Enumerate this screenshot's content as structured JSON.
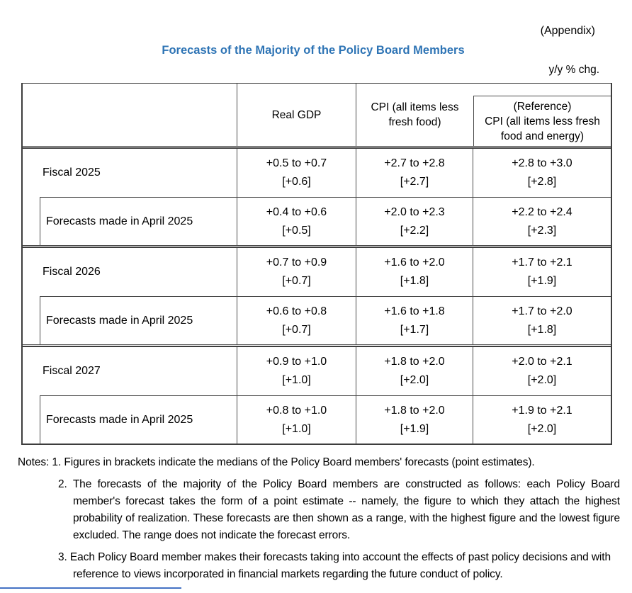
{
  "page": {
    "appendix_label": "(Appendix)",
    "title": "Forecasts of the Majority of the Policy Board Members",
    "unit_label": "y/y % chg."
  },
  "colors": {
    "title_blue": "#2E74B5",
    "footer_rule_blue": "#4472C4",
    "table_border_gray": "#3d3d3d"
  },
  "table": {
    "column_headers": {
      "real_gdp": "Real GDP",
      "cpi": "CPI (all items less fresh food)",
      "reference_line1": "(Reference)",
      "reference_line2": "CPI (all items less fresh food and energy)"
    },
    "groups": [
      {
        "fiscal_row": {
          "label": "Fiscal 2025",
          "real_gdp": {
            "range": "+0.5 to +0.7",
            "median": "[+0.6]"
          },
          "cpi": {
            "range": "+2.7 to +2.8",
            "median": "[+2.7]"
          },
          "reference": {
            "range": "+2.8 to +3.0",
            "median": "[+2.8]"
          }
        },
        "april_row": {
          "label": "Forecasts made in April 2025",
          "real_gdp": {
            "range": "+0.4 to +0.6",
            "median": "[+0.5]"
          },
          "cpi": {
            "range": "+2.0 to +2.3",
            "median": "[+2.2]"
          },
          "reference": {
            "range": "+2.2 to +2.4",
            "median": "[+2.3]"
          }
        }
      },
      {
        "fiscal_row": {
          "label": "Fiscal 2026",
          "real_gdp": {
            "range": "+0.7 to +0.9",
            "median": "[+0.7]"
          },
          "cpi": {
            "range": "+1.6 to +2.0",
            "median": "[+1.8]"
          },
          "reference": {
            "range": "+1.7 to +2.1",
            "median": "[+1.9]"
          }
        },
        "april_row": {
          "label": "Forecasts made in April 2025",
          "real_gdp": {
            "range": "+0.6 to +0.8",
            "median": "[+0.7]"
          },
          "cpi": {
            "range": "+1.6 to +1.8",
            "median": "[+1.7]"
          },
          "reference": {
            "range": "+1.7 to +2.0",
            "median": "[+1.8]"
          }
        }
      },
      {
        "fiscal_row": {
          "label": "Fiscal 2027",
          "real_gdp": {
            "range": "+0.9 to +1.0",
            "median": "[+1.0]"
          },
          "cpi": {
            "range": "+1.8 to +2.0",
            "median": "[+2.0]"
          },
          "reference": {
            "range": "+2.0 to +2.1",
            "median": "[+2.0]"
          }
        },
        "april_row": {
          "label": "Forecasts made in April 2025",
          "real_gdp": {
            "range": "+0.8 to +1.0",
            "median": "[+1.0]"
          },
          "cpi": {
            "range": "+1.8 to +2.0",
            "median": "[+1.9]"
          },
          "reference": {
            "range": "+1.9 to +2.1",
            "median": "[+2.0]"
          }
        }
      }
    ]
  },
  "notes": {
    "label": "Notes:",
    "items": [
      "1. Figures in brackets indicate the medians of the Policy Board members' forecasts (point estimates).",
      "2. The forecasts of the majority of the Policy Board members are constructed as follows: each Policy Board member's forecast takes the form of a point estimate -- namely, the figure to which they attach the highest probability of realization. These forecasts are then shown as a range, with the highest figure and the lowest figure excluded. The range does not indicate the forecast errors.",
      "3. Each Policy Board member makes their forecasts taking into account the effects of past policy decisions and with reference to views incorporated in financial markets regarding the future conduct of policy."
    ]
  }
}
